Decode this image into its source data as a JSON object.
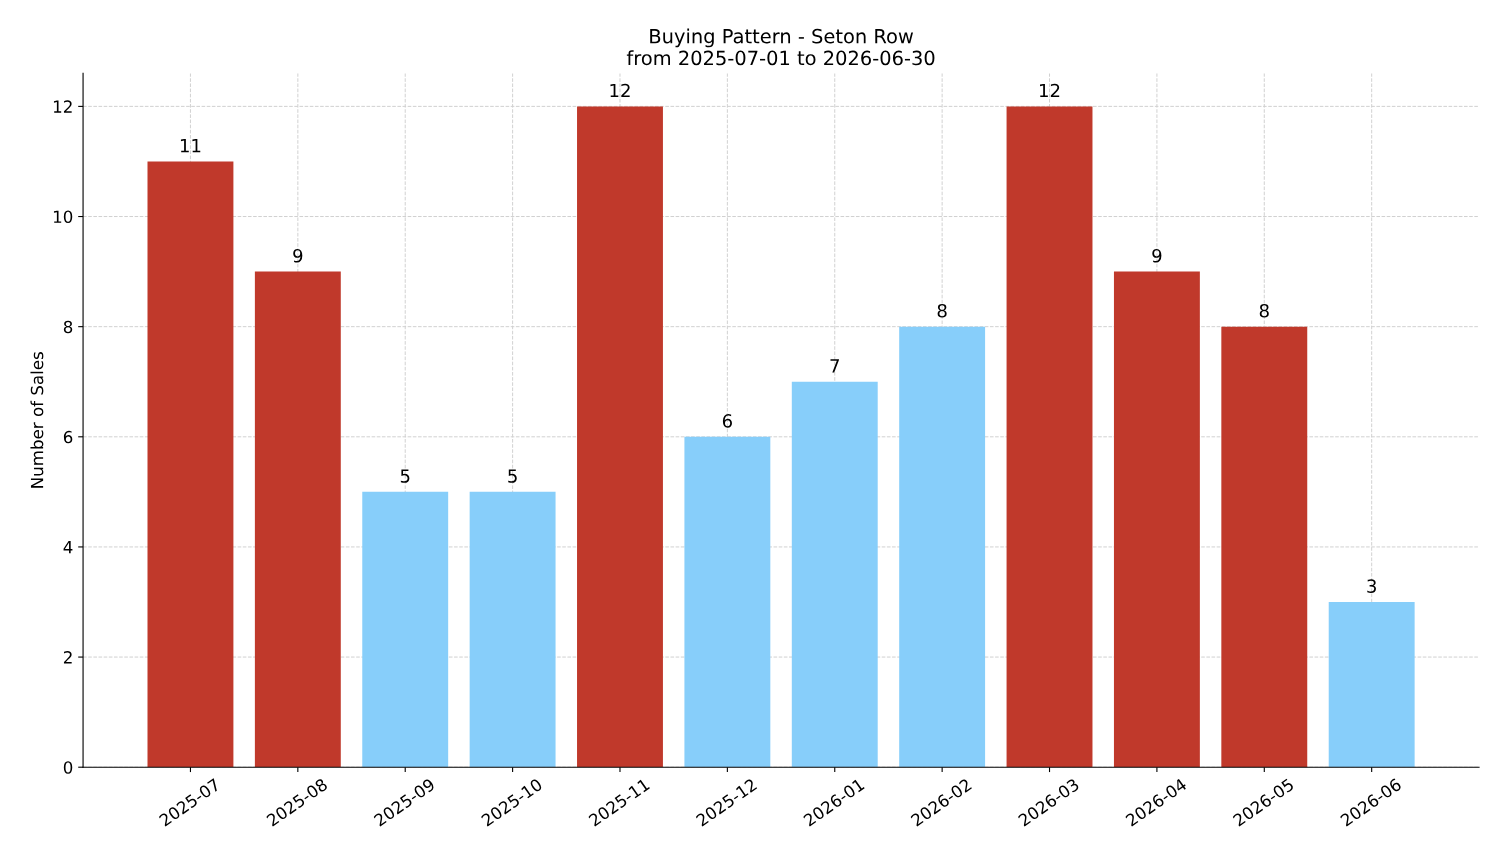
{
  "chart_data": {
    "type": "bar",
    "title": "Buying Pattern - Seton Row\nfrom 2025-07-01 to 2026-06-30",
    "ylabel": "Number of Sales",
    "categories": [
      "2025-07",
      "2025-08",
      "2025-09",
      "2025-10",
      "2025-11",
      "2025-12",
      "2026-01",
      "2026-02",
      "2026-03",
      "2026-04",
      "2026-05",
      "2026-06"
    ],
    "values": [
      11,
      9,
      5,
      5,
      12,
      6,
      7,
      8,
      12,
      9,
      8,
      3
    ],
    "colors": [
      "#c0392b",
      "#c0392b",
      "#87cefa",
      "#87cefa",
      "#c0392b",
      "#87cefa",
      "#87cefa",
      "#87cefa",
      "#c0392b",
      "#c0392b",
      "#c0392b",
      "#87cefa"
    ],
    "ylim": [
      0,
      12.6
    ],
    "yticks": [
      0,
      2,
      4,
      6,
      8,
      10,
      12
    ],
    "grid": true,
    "data_labels": true
  }
}
